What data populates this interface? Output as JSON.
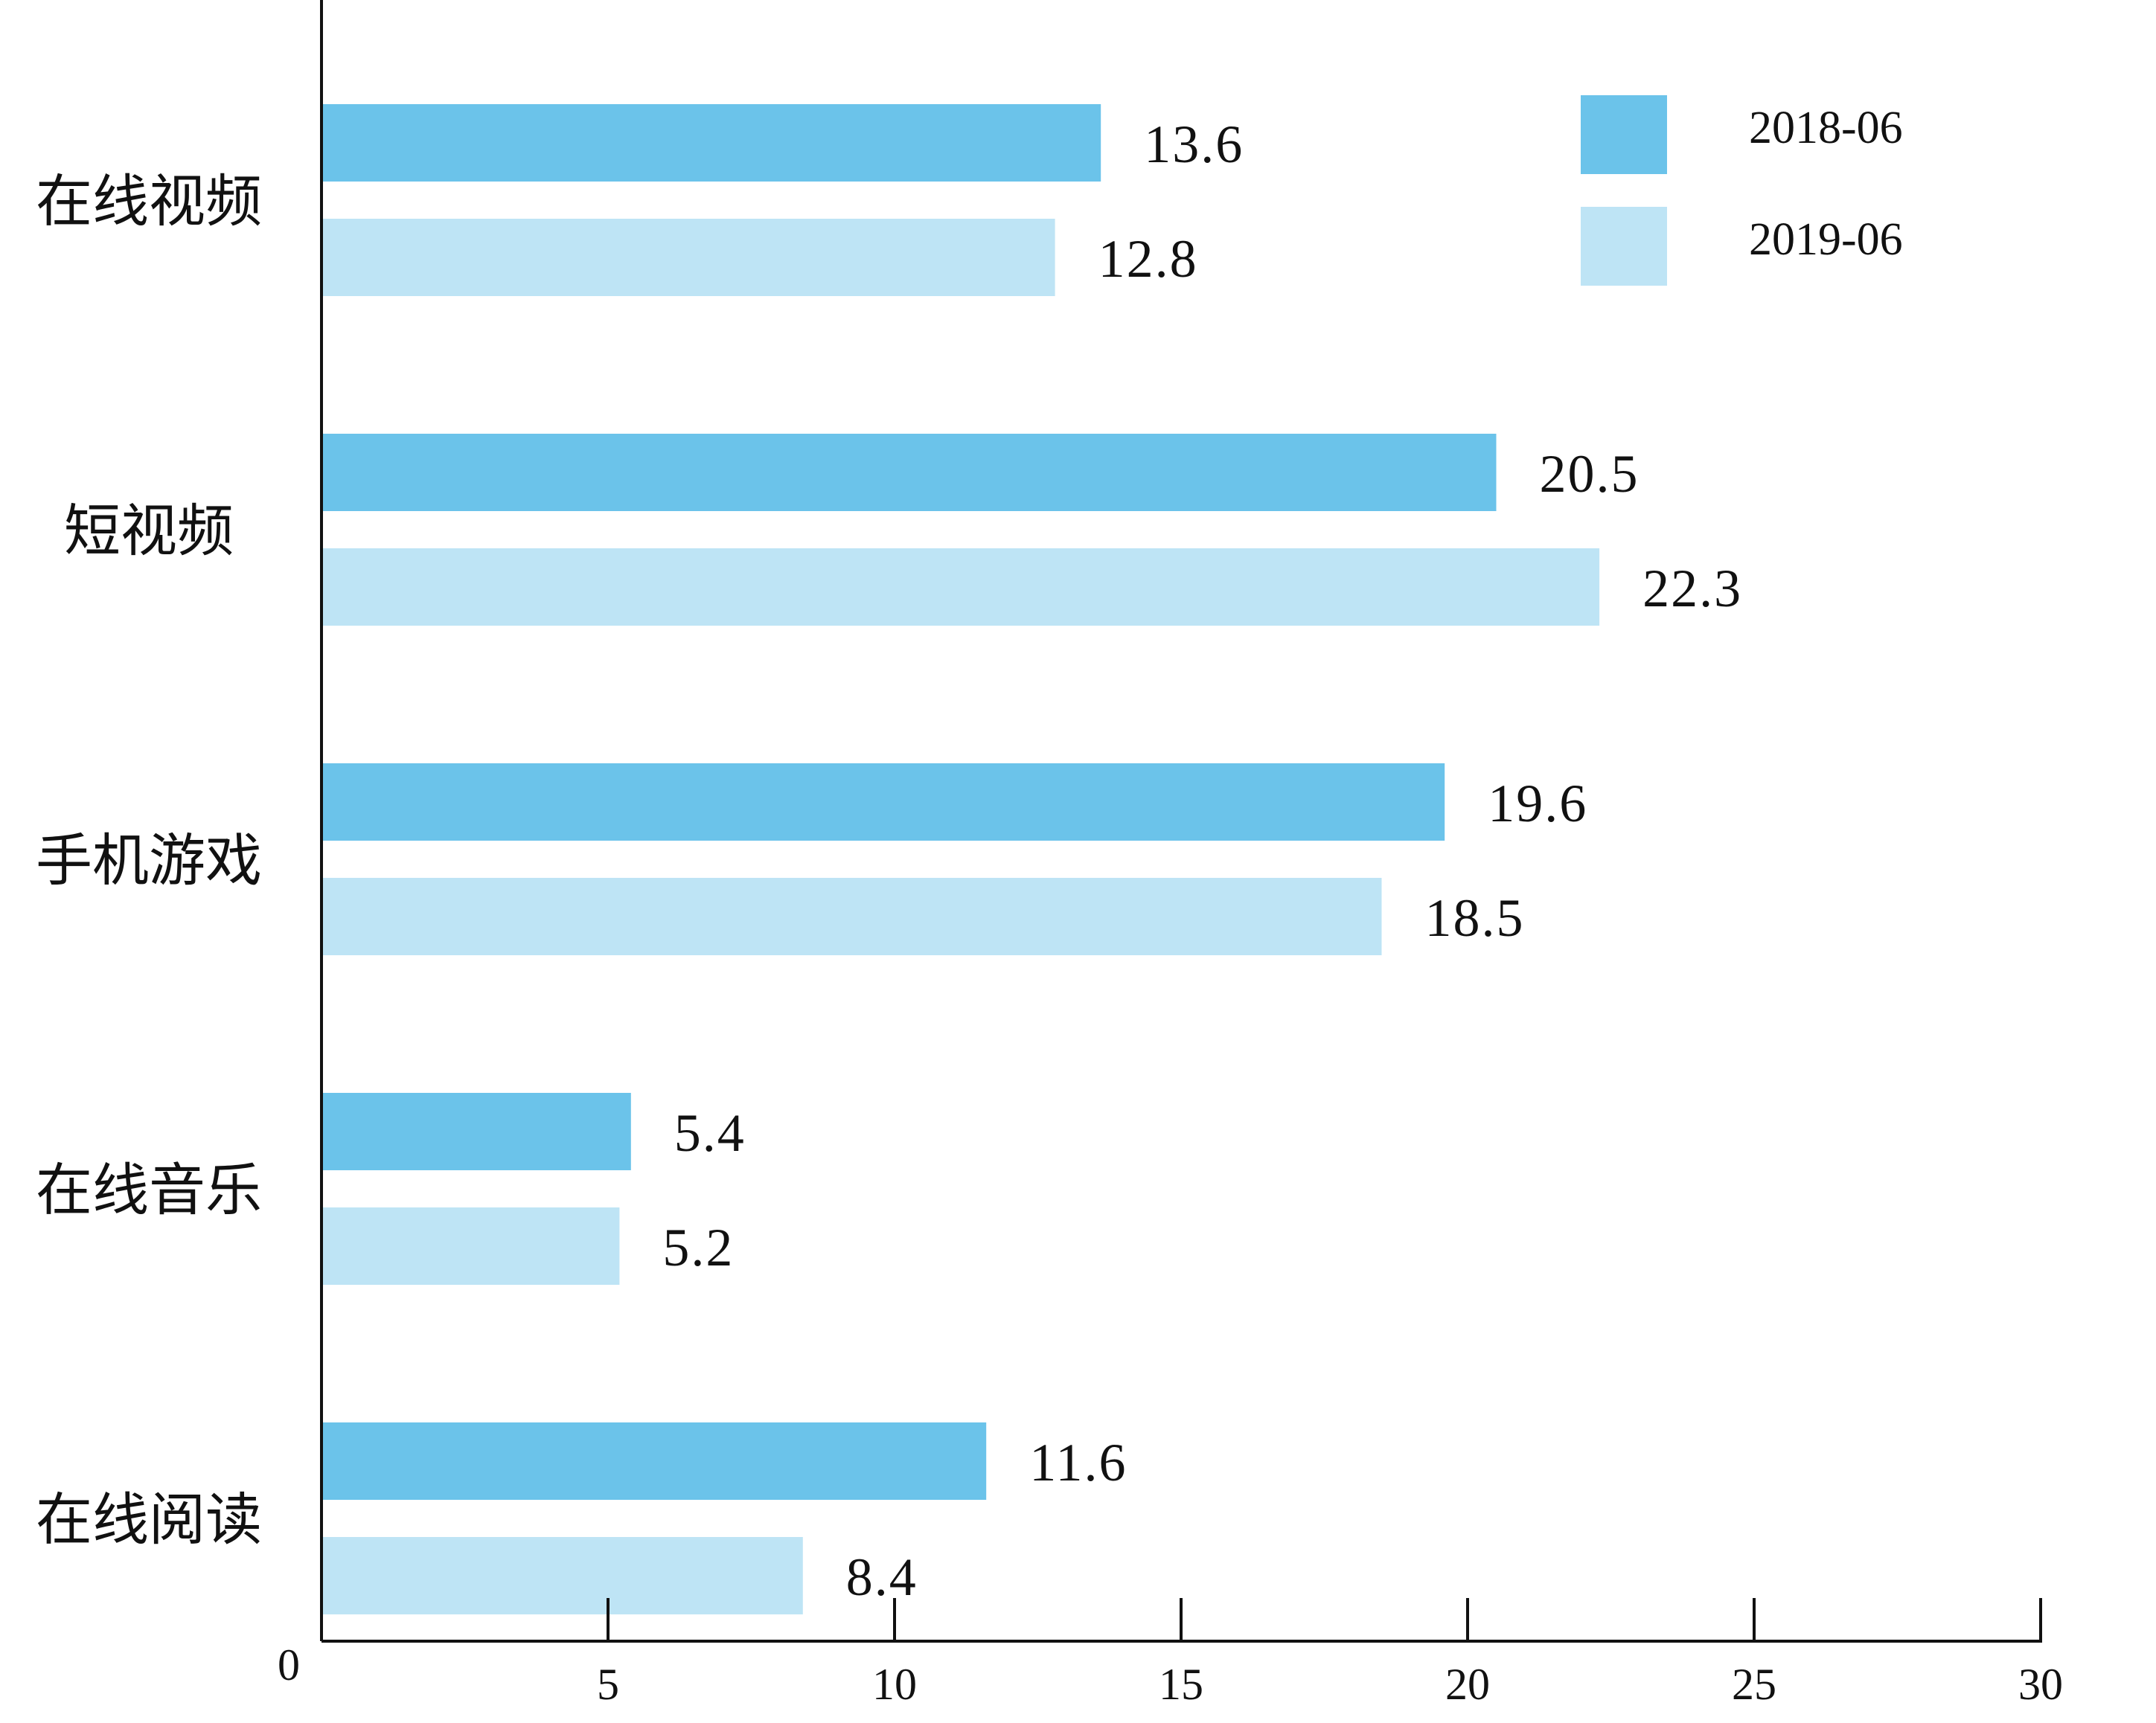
{
  "chart_data": {
    "type": "bar",
    "orientation": "horizontal",
    "categories": [
      "在线视频",
      "短视频",
      "手机游戏",
      "在线音乐",
      "在线阅读"
    ],
    "series": [
      {
        "name": "2018-06",
        "color": "#6bc3ea",
        "values": [
          13.6,
          20.5,
          19.6,
          5.4,
          11.6
        ],
        "labels": [
          "13.6",
          "20.5",
          "19.6",
          "5.4",
          "11.6"
        ]
      },
      {
        "name": "2019-06",
        "color": "#bee4f5",
        "values": [
          12.8,
          22.3,
          18.5,
          5.2,
          8.4
        ],
        "labels": [
          "12.8",
          "22.3",
          "18.5",
          "5.2",
          "8.4"
        ]
      }
    ],
    "xlim": [
      0,
      30
    ],
    "xticks": [
      "0",
      "5",
      "10",
      "15",
      "20",
      "25",
      "30"
    ],
    "grid": false,
    "legend_position": "top-right",
    "title": "",
    "xlabel": "",
    "ylabel": ""
  }
}
